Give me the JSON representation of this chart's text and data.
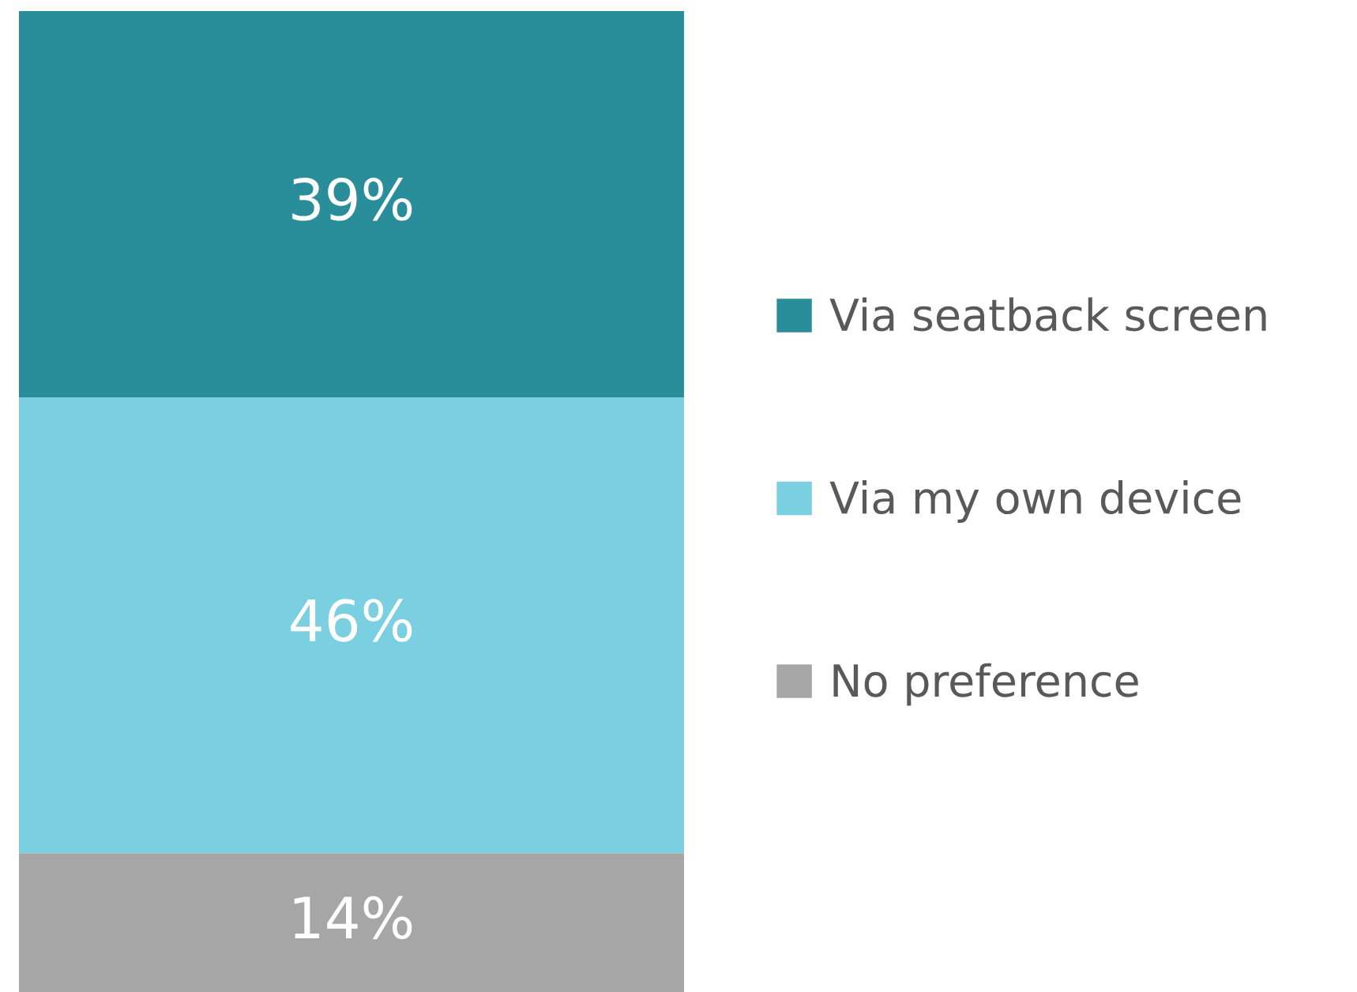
{
  "chart_data": {
    "type": "bar",
    "stacked": true,
    "categories": [
      null
    ],
    "legend": "right",
    "series": [
      {
        "name": "No preference",
        "color": "#a6a6a6",
        "values": [
          14
        ],
        "value_labels": [
          "14%"
        ]
      },
      {
        "name": "Via my own device",
        "color": "#7ad0e0",
        "values": [
          46
        ],
        "value_labels": [
          "46%"
        ]
      },
      {
        "name": "Via seatback screen",
        "color": "#2a8e9a",
        "values": [
          39
        ],
        "value_labels": [
          "39%"
        ]
      }
    ]
  }
}
